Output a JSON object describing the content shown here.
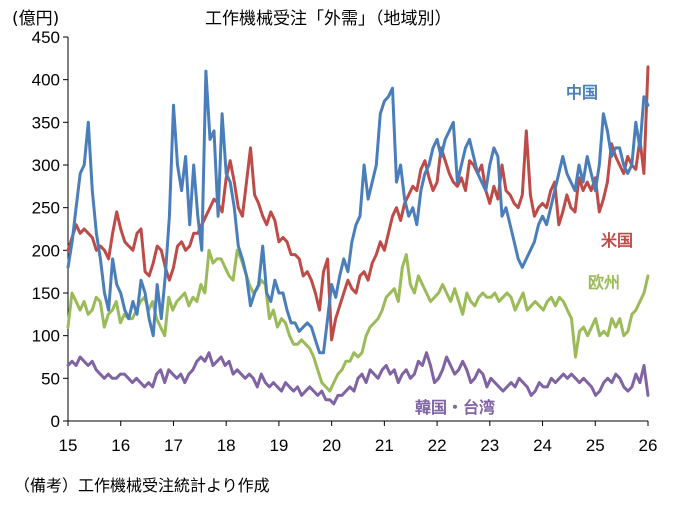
{
  "chart_data": {
    "type": "line",
    "title": "工作機械受注「外需」（地域別）",
    "ylabel": "(億円)",
    "ylim": [
      0,
      450
    ],
    "yticks": [
      0,
      50,
      100,
      150,
      200,
      250,
      300,
      350,
      400,
      450
    ],
    "xlim": [
      15,
      26
    ],
    "xticks": [
      "15",
      "16",
      "17",
      "18",
      "19",
      "20",
      "21",
      "22",
      "23",
      "24",
      "25",
      "26"
    ],
    "grid": false,
    "series": [
      {
        "name": "中国",
        "color": "#4a7ebb",
        "values": [
          180,
          210,
          250,
          290,
          300,
          350,
          270,
          220,
          190,
          150,
          130,
          190,
          160,
          150,
          130,
          120,
          140,
          125,
          165,
          150,
          120,
          100,
          160,
          120,
          170,
          240,
          370,
          300,
          270,
          310,
          230,
          300,
          240,
          200,
          410,
          330,
          340,
          240,
          360,
          290,
          280,
          250,
          205,
          190,
          170,
          135,
          150,
          160,
          205,
          150,
          140,
          165,
          150,
          150,
          130,
          115,
          115,
          105,
          110,
          115,
          110,
          95,
          80,
          80,
          120,
          160,
          145,
          170,
          190,
          175,
          210,
          230,
          240,
          300,
          260,
          280,
          300,
          360,
          375,
          380,
          390,
          280,
          300,
          260,
          240,
          250,
          230,
          270,
          290,
          300,
          320,
          330,
          310,
          330,
          340,
          350,
          280,
          300,
          320,
          330,
          310,
          290,
          280,
          270,
          300,
          320,
          310,
          240,
          250,
          230,
          210,
          190,
          180,
          190,
          200,
          210,
          230,
          240,
          230,
          250,
          270,
          290,
          310,
          290,
          280,
          270,
          300,
          280,
          310,
          290,
          270,
          300,
          360,
          340,
          310,
          320,
          320,
          300,
          290,
          300,
          350,
          320,
          380,
          370
        ]
      },
      {
        "name": "米国",
        "color": "#be4b48",
        "values": [
          200,
          215,
          230,
          220,
          225,
          220,
          215,
          200,
          205,
          200,
          190,
          220,
          245,
          225,
          210,
          205,
          200,
          220,
          225,
          175,
          170,
          185,
          205,
          200,
          180,
          165,
          180,
          205,
          210,
          200,
          205,
          220,
          220,
          230,
          240,
          250,
          260,
          255,
          245,
          285,
          305,
          280,
          250,
          240,
          280,
          320,
          265,
          255,
          240,
          230,
          245,
          235,
          210,
          215,
          210,
          195,
          195,
          190,
          170,
          175,
          165,
          150,
          130,
          175,
          190,
          95,
          120,
          135,
          150,
          165,
          155,
          150,
          170,
          175,
          165,
          185,
          195,
          210,
          200,
          220,
          240,
          250,
          235,
          255,
          265,
          275,
          270,
          295,
          305,
          285,
          270,
          280,
          320,
          305,
          290,
          280,
          275,
          285,
          270,
          305,
          300,
          290,
          300,
          270,
          255,
          275,
          260,
          300,
          270,
          265,
          255,
          250,
          265,
          340,
          265,
          240,
          250,
          255,
          250,
          270,
          280,
          230,
          245,
          265,
          250,
          245,
          285,
          270,
          280,
          270,
          285,
          245,
          260,
          280,
          325,
          310,
          300,
          290,
          310,
          300,
          295,
          330,
          290,
          415
        ]
      },
      {
        "name": "欧州",
        "color": "#9bbb59",
        "values": [
          110,
          150,
          140,
          130,
          140,
          125,
          130,
          145,
          140,
          110,
          125,
          130,
          140,
          115,
          125,
          120,
          120,
          130,
          140,
          145,
          130,
          140,
          120,
          110,
          100,
          145,
          130,
          140,
          145,
          150,
          135,
          145,
          140,
          160,
          150,
          200,
          185,
          190,
          190,
          180,
          170,
          165,
          200,
          190,
          175,
          160,
          150,
          155,
          165,
          160,
          120,
          130,
          110,
          120,
          115,
          100,
          90,
          90,
          95,
          90,
          85,
          75,
          60,
          45,
          40,
          35,
          45,
          55,
          60,
          70,
          70,
          80,
          75,
          80,
          100,
          110,
          115,
          120,
          130,
          145,
          150,
          155,
          140,
          180,
          195,
          160,
          150,
          170,
          160,
          150,
          140,
          145,
          150,
          160,
          150,
          140,
          155,
          140,
          125,
          150,
          140,
          135,
          145,
          150,
          145,
          145,
          150,
          140,
          145,
          150,
          145,
          130,
          140,
          150,
          130,
          135,
          140,
          135,
          130,
          140,
          145,
          135,
          145,
          140,
          130,
          120,
          75,
          105,
          110,
          100,
          110,
          120,
          100,
          105,
          100,
          120,
          110,
          120,
          100,
          105,
          125,
          130,
          140,
          150,
          170
        ]
      },
      {
        "name": "韓国・台湾",
        "color": "#7f63a2",
        "values": [
          65,
          70,
          65,
          75,
          70,
          65,
          70,
          60,
          55,
          50,
          55,
          50,
          50,
          55,
          55,
          50,
          45,
          50,
          45,
          40,
          45,
          40,
          55,
          60,
          45,
          60,
          55,
          50,
          55,
          45,
          55,
          60,
          70,
          75,
          70,
          80,
          65,
          70,
          75,
          65,
          70,
          55,
          60,
          55,
          50,
          55,
          50,
          40,
          55,
          45,
          40,
          45,
          40,
          35,
          45,
          40,
          35,
          40,
          30,
          35,
          40,
          35,
          30,
          35,
          25,
          25,
          20,
          30,
          30,
          35,
          40,
          35,
          50,
          55,
          45,
          60,
          55,
          50,
          60,
          65,
          55,
          60,
          45,
          55,
          60,
          50,
          55,
          70,
          65,
          80,
          65,
          45,
          50,
          60,
          75,
          65,
          55,
          60,
          70,
          60,
          45,
          50,
          60,
          55,
          40,
          50,
          45,
          40,
          35,
          40,
          45,
          40,
          50,
          45,
          40,
          30,
          35,
          45,
          40,
          40,
          50,
          45,
          50,
          55,
          50,
          55,
          50,
          45,
          50,
          45,
          40,
          30,
          35,
          45,
          50,
          45,
          55,
          50,
          40,
          35,
          40,
          55,
          45,
          65,
          30
        ]
      }
    ],
    "series_labels": [
      "中国",
      "米国",
      "欧州",
      "韓国・台湾"
    ]
  },
  "note": "（備考）工作機械受注統計より作成"
}
